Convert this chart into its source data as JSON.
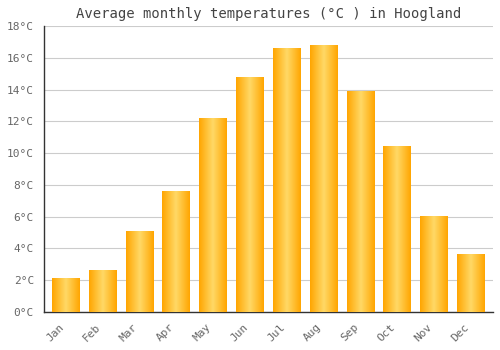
{
  "months": [
    "Jan",
    "Feb",
    "Mar",
    "Apr",
    "May",
    "Jun",
    "Jul",
    "Aug",
    "Sep",
    "Oct",
    "Nov",
    "Dec"
  ],
  "values": [
    2.1,
    2.6,
    5.1,
    7.6,
    12.2,
    14.8,
    16.6,
    16.8,
    13.9,
    10.4,
    6.0,
    3.6
  ],
  "bar_color_light": "#FFD966",
  "bar_color_dark": "#FFA500",
  "title": "Average monthly temperatures (°C ) in Hoogland",
  "ylim": [
    0,
    18
  ],
  "ytick_step": 2,
  "background_color": "#ffffff",
  "grid_color": "#cccccc",
  "title_fontsize": 10,
  "tick_fontsize": 8,
  "font_family": "monospace",
  "tick_color": "#666666",
  "spine_color": "#333333"
}
